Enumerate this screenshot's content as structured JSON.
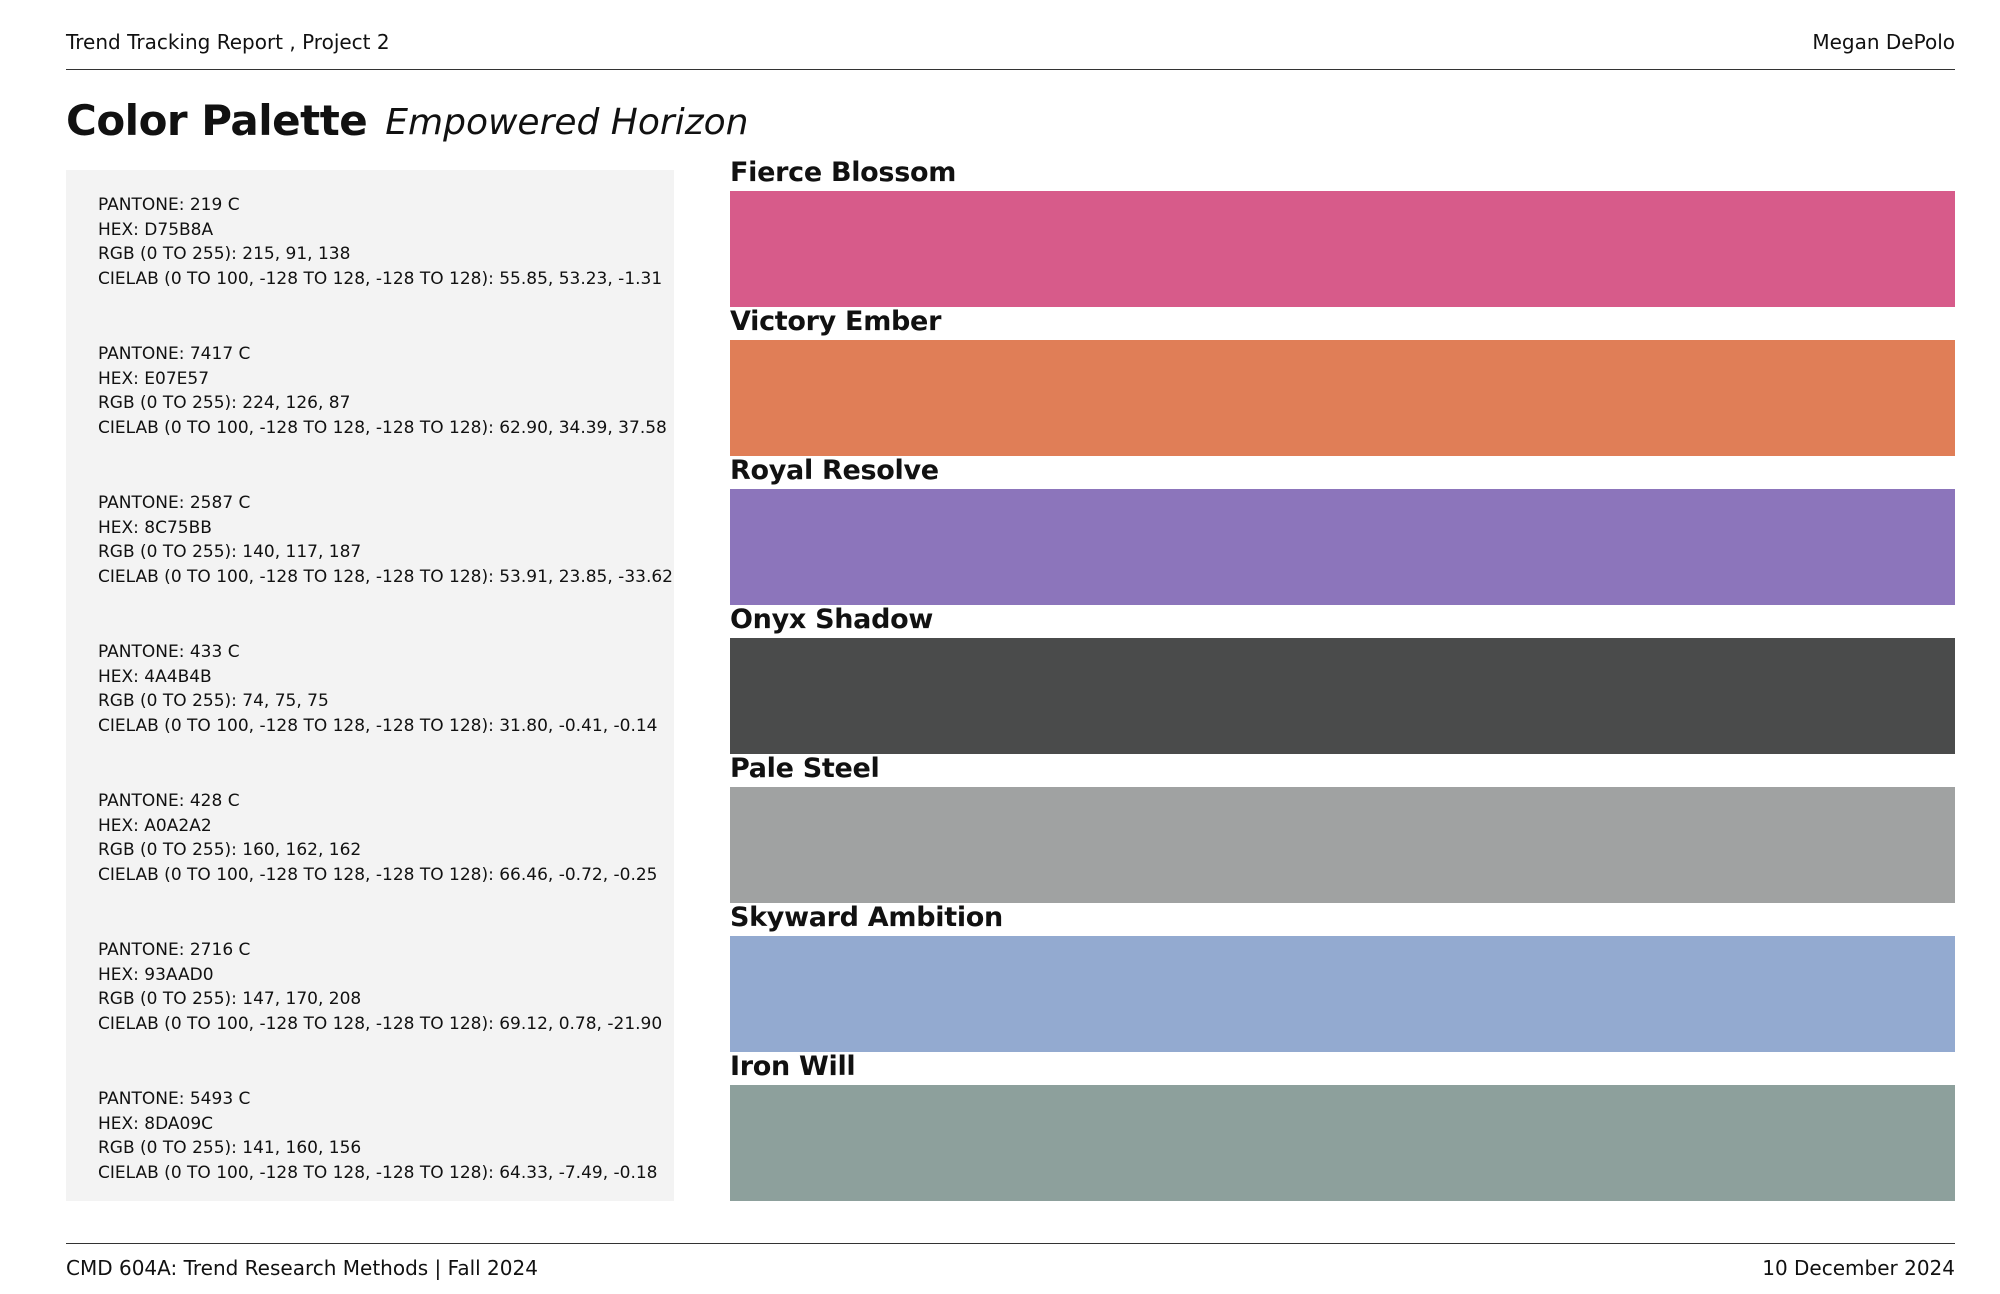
{
  "header": {
    "title": "Trend Tracking Report , Project 2",
    "author": "Megan DePolo"
  },
  "heading": {
    "title": "Color Palette",
    "subtitle": "Empowered Horizon"
  },
  "colors": [
    {
      "name": "Fierce Blossom",
      "color": "#d75b8a",
      "pantone": "PANTONE: 219 C",
      "hex": "HEX: D75B8A",
      "rgb": "RGB (0 TO 255): 215, 91, 138",
      "cielab": "CIELAB (0 TO 100, -128 TO 128, -128 TO 128): 55.85, 53.23, -1.31"
    },
    {
      "name": "Victory Ember",
      "color": "#e07e57",
      "pantone": "PANTONE: 7417 C",
      "hex": "HEX: E07E57",
      "rgb": "RGB (0 TO 255): 224, 126, 87",
      "cielab": "CIELAB (0 TO 100, -128 TO 128, -128 TO 128): 62.90, 34.39, 37.58"
    },
    {
      "name": "Royal Resolve",
      "color": "#8c75bb",
      "pantone": "PANTONE: 2587 C",
      "hex": "HEX: 8C75BB",
      "rgb": "RGB (0 TO 255): 140, 117, 187",
      "cielab": "CIELAB (0 TO 100, -128 TO 128, -128 TO 128): 53.91, 23.85, -33.62"
    },
    {
      "name": "Onyx Shadow",
      "color": "#4a4b4b",
      "pantone": "PANTONE: 433 C",
      "hex": "HEX: 4A4B4B",
      "rgb": "RGB (0 TO 255): 74, 75, 75",
      "cielab": "CIELAB (0 TO 100, -128 TO 128, -128 TO 128): 31.80, -0.41, -0.14"
    },
    {
      "name": "Pale Steel",
      "color": "#a0a2a2",
      "pantone": "PANTONE: 428 C",
      "hex": "HEX: A0A2A2",
      "rgb": "RGB (0 TO 255): 160, 162, 162",
      "cielab": "CIELAB (0 TO 100, -128 TO 128, -128 TO 128): 66.46, -0.72, -0.25"
    },
    {
      "name": "Skyward Ambition",
      "color": "#93aad0",
      "pantone": "PANTONE: 2716 C",
      "hex": "HEX: 93AAD0",
      "rgb": "RGB (0 TO 255): 147, 170, 208",
      "cielab": "CIELAB (0 TO 100, -128 TO 128, -128 TO 128): 69.12, 0.78, -21.90"
    },
    {
      "name": "Iron Will",
      "color": "#8da09c",
      "pantone": "PANTONE: 5493 C",
      "hex": "HEX: 8DA09C",
      "rgb": "RGB (0 TO 255): 141, 160, 156",
      "cielab": "CIELAB (0 TO 100, -128 TO 128, -128 TO 128): 64.33, -7.49, -0.18"
    }
  ],
  "footer": {
    "course": "CMD 604A: Trend Research Methods | Fall 2024",
    "date": "10 December 2024"
  }
}
